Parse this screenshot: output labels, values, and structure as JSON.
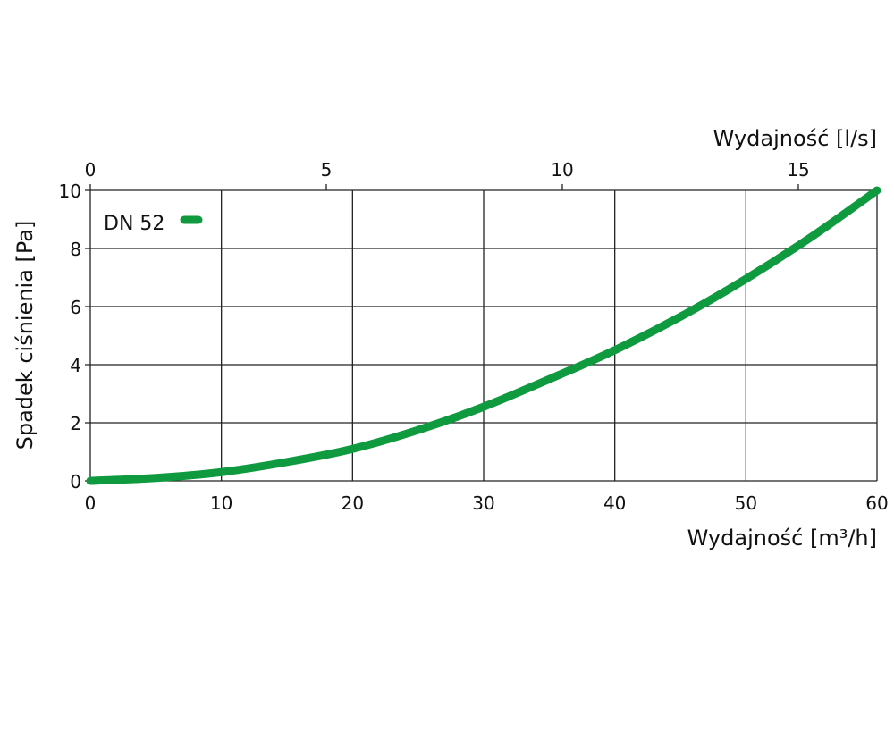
{
  "chart_data": {
    "type": "line",
    "title": "",
    "xlabel": "Wydajność [m³/h]",
    "x2label": "Wydajność [l/s]",
    "ylabel": "Spadek ciśnienia  [Pa]",
    "xlim": [
      0,
      60
    ],
    "ylim": [
      0,
      10
    ],
    "x2lim": [
      0,
      16.667
    ],
    "xticks": [
      0,
      10,
      20,
      30,
      40,
      50,
      60
    ],
    "x2ticks": [
      0,
      5,
      10,
      15
    ],
    "yticks": [
      0,
      2,
      4,
      6,
      8,
      10
    ],
    "grid": true,
    "legend_placement": "top-left",
    "series": [
      {
        "name": "DN 52",
        "color": "#0f9a3f",
        "x": [
          0,
          5,
          10,
          15,
          20,
          25,
          30,
          35,
          40,
          45,
          50,
          55,
          60
        ],
        "y": [
          0,
          0.1,
          0.3,
          0.65,
          1.1,
          1.75,
          2.55,
          3.5,
          4.5,
          5.65,
          6.95,
          8.4,
          10
        ]
      }
    ]
  }
}
